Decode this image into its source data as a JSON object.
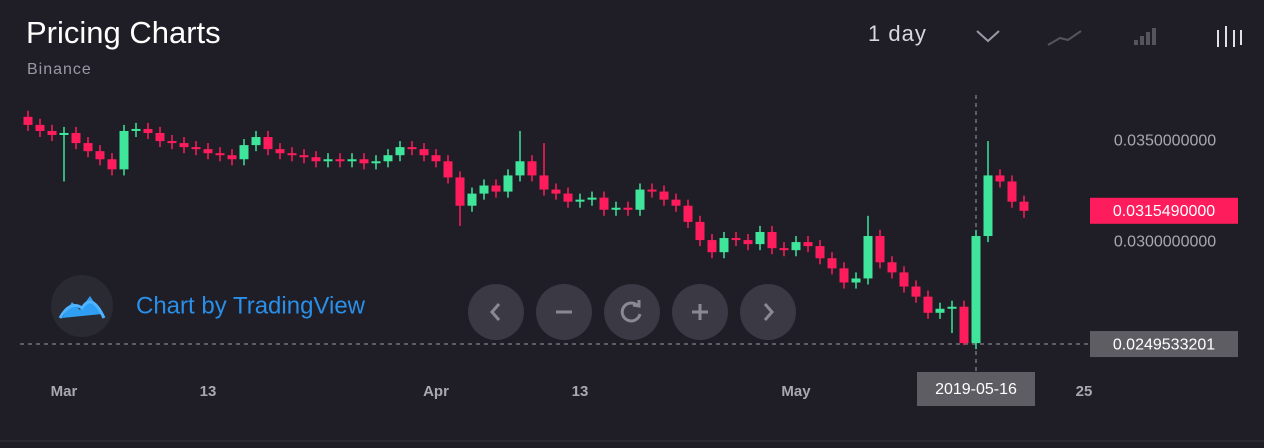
{
  "header": {
    "title": "Pricing Charts",
    "subtitle": "Binance",
    "interval": "1 day"
  },
  "watermark": "Chart by TradingView",
  "chart_data": {
    "type": "candlestick",
    "up_color": "#3ee59a",
    "down_color": "#ff1c5c",
    "x": [
      "2019-02-26",
      "2019-02-27",
      "2019-02-28",
      "2019-03-01",
      "2019-03-02",
      "2019-03-03",
      "2019-03-04",
      "2019-03-05",
      "2019-03-06",
      "2019-03-07",
      "2019-03-08",
      "2019-03-09",
      "2019-03-10",
      "2019-03-11",
      "2019-03-12",
      "2019-03-13",
      "2019-03-14",
      "2019-03-15",
      "2019-03-16",
      "2019-03-17",
      "2019-03-18",
      "2019-03-19",
      "2019-03-20",
      "2019-03-21",
      "2019-03-22",
      "2019-03-23",
      "2019-03-24",
      "2019-03-25",
      "2019-03-26",
      "2019-03-27",
      "2019-03-28",
      "2019-03-29",
      "2019-03-30",
      "2019-03-31",
      "2019-04-01",
      "2019-04-02",
      "2019-04-03",
      "2019-04-04",
      "2019-04-05",
      "2019-04-06",
      "2019-04-07",
      "2019-04-08",
      "2019-04-09",
      "2019-04-10",
      "2019-04-11",
      "2019-04-12",
      "2019-04-13",
      "2019-04-14",
      "2019-04-15",
      "2019-04-16",
      "2019-04-17",
      "2019-04-18",
      "2019-04-19",
      "2019-04-20",
      "2019-04-21",
      "2019-04-22",
      "2019-04-23",
      "2019-04-24",
      "2019-04-25",
      "2019-04-26",
      "2019-04-27",
      "2019-04-28",
      "2019-04-29",
      "2019-04-30",
      "2019-05-01",
      "2019-05-02",
      "2019-05-03",
      "2019-05-04",
      "2019-05-05",
      "2019-05-06",
      "2019-05-07",
      "2019-05-08",
      "2019-05-09",
      "2019-05-10",
      "2019-05-11",
      "2019-05-12",
      "2019-05-13",
      "2019-05-14",
      "2019-05-15",
      "2019-05-16",
      "2019-05-17",
      "2019-05-18",
      "2019-05-19",
      "2019-05-20"
    ],
    "open": [
      0.0362,
      0.0358,
      0.0355,
      0.0353,
      0.0354,
      0.0349,
      0.0345,
      0.0341,
      0.0336,
      0.0355,
      0.0356,
      0.0354,
      0.035,
      0.0349,
      0.0347,
      0.0346,
      0.0344,
      0.0343,
      0.0341,
      0.0348,
      0.0352,
      0.0346,
      0.0344,
      0.0343,
      0.0342,
      0.034,
      0.0341,
      0.034,
      0.0341,
      0.0339,
      0.034,
      0.0343,
      0.0347,
      0.0346,
      0.0343,
      0.034,
      0.0332,
      0.0318,
      0.0324,
      0.0328,
      0.0325,
      0.0333,
      0.034,
      0.0333,
      0.0326,
      0.0324,
      0.032,
      0.0321,
      0.0322,
      0.0316,
      0.0317,
      0.0316,
      0.0326,
      0.0325,
      0.0321,
      0.0318,
      0.031,
      0.0301,
      0.0295,
      0.0302,
      0.0301,
      0.0299,
      0.0305,
      0.0297,
      0.0296,
      0.03,
      0.0298,
      0.0292,
      0.0287,
      0.028,
      0.0282,
      0.0303,
      0.029,
      0.0285,
      0.0278,
      0.0273,
      0.0265,
      0.0267,
      0.0268,
      0.025,
      0.0303,
      0.0333,
      0.033,
      0.032
    ],
    "high": [
      0.0365,
      0.0361,
      0.0358,
      0.0357,
      0.0357,
      0.0352,
      0.0348,
      0.0344,
      0.0358,
      0.0359,
      0.0359,
      0.0357,
      0.0353,
      0.0352,
      0.035,
      0.0349,
      0.0347,
      0.0346,
      0.0351,
      0.0355,
      0.0355,
      0.0349,
      0.0347,
      0.0346,
      0.0345,
      0.0344,
      0.0344,
      0.0344,
      0.0344,
      0.0343,
      0.0346,
      0.035,
      0.035,
      0.0349,
      0.0346,
      0.0343,
      0.0335,
      0.0327,
      0.0331,
      0.0331,
      0.0336,
      0.0355,
      0.0343,
      0.0349,
      0.0329,
      0.0327,
      0.0324,
      0.0325,
      0.0325,
      0.032,
      0.032,
      0.0329,
      0.0329,
      0.0328,
      0.0324,
      0.0321,
      0.0313,
      0.0304,
      0.0305,
      0.0305,
      0.0304,
      0.0308,
      0.0308,
      0.03,
      0.0303,
      0.0303,
      0.0301,
      0.0295,
      0.029,
      0.0285,
      0.0313,
      0.0306,
      0.0293,
      0.0288,
      0.0281,
      0.0276,
      0.027,
      0.0271,
      0.0271,
      0.0306,
      0.035,
      0.0336,
      0.0333,
      0.0323
    ],
    "low": [
      0.0355,
      0.0352,
      0.035,
      0.033,
      0.0346,
      0.0342,
      0.0338,
      0.0333,
      0.0333,
      0.0352,
      0.0351,
      0.0347,
      0.0346,
      0.0344,
      0.0343,
      0.0341,
      0.034,
      0.0338,
      0.0338,
      0.0345,
      0.0343,
      0.0341,
      0.034,
      0.0339,
      0.0337,
      0.0337,
      0.0337,
      0.0337,
      0.0336,
      0.0336,
      0.0337,
      0.034,
      0.0343,
      0.034,
      0.0337,
      0.0329,
      0.0308,
      0.0315,
      0.0321,
      0.0322,
      0.0322,
      0.033,
      0.033,
      0.0323,
      0.0321,
      0.0317,
      0.0317,
      0.0318,
      0.0313,
      0.0313,
      0.0313,
      0.0313,
      0.0322,
      0.0318,
      0.0315,
      0.0307,
      0.0298,
      0.0292,
      0.0292,
      0.0298,
      0.0296,
      0.0296,
      0.0294,
      0.0293,
      0.0293,
      0.0295,
      0.0289,
      0.0284,
      0.0277,
      0.0277,
      0.0279,
      0.0287,
      0.0282,
      0.0275,
      0.027,
      0.0262,
      0.0262,
      0.0255,
      0.0249,
      0.0247,
      0.03,
      0.0327,
      0.0317,
      0.0312
    ],
    "close": [
      0.0358,
      0.0355,
      0.0353,
      0.0354,
      0.0349,
      0.0345,
      0.0341,
      0.0336,
      0.0355,
      0.0356,
      0.0354,
      0.035,
      0.0349,
      0.0347,
      0.0346,
      0.0344,
      0.0343,
      0.0341,
      0.0348,
      0.0352,
      0.0346,
      0.0344,
      0.0343,
      0.0342,
      0.034,
      0.0341,
      0.034,
      0.0341,
      0.0339,
      0.034,
      0.0343,
      0.0347,
      0.0346,
      0.0343,
      0.034,
      0.0332,
      0.0318,
      0.0324,
      0.0328,
      0.0325,
      0.0333,
      0.034,
      0.0333,
      0.0326,
      0.0324,
      0.032,
      0.0321,
      0.0322,
      0.0316,
      0.0317,
      0.0316,
      0.0326,
      0.0325,
      0.0321,
      0.0318,
      0.031,
      0.0301,
      0.0295,
      0.0302,
      0.0301,
      0.0299,
      0.0305,
      0.0297,
      0.0296,
      0.03,
      0.0298,
      0.0292,
      0.0287,
      0.028,
      0.0282,
      0.0303,
      0.029,
      0.0285,
      0.0278,
      0.0273,
      0.0265,
      0.0267,
      0.0268,
      0.025,
      0.0303,
      0.0333,
      0.033,
      0.032,
      0.031549
    ],
    "xlim": [
      "2019-02-24",
      "2019-05-25"
    ],
    "xticks": [
      {
        "value": "2019-03-01",
        "label": "Mar"
      },
      {
        "value": "2019-03-13",
        "label": "13"
      },
      {
        "value": "2019-04-01",
        "label": "Apr"
      },
      {
        "value": "2019-04-13",
        "label": "13"
      },
      {
        "value": "2019-05-01",
        "label": "May"
      },
      {
        "value": "2019-05-25",
        "label": "25"
      }
    ],
    "ylim": [
      0.02357,
      0.03728
    ],
    "yticks": [
      {
        "value": 0.035,
        "label": "0.0350000000"
      },
      {
        "value": 0.03,
        "label": "0.0300000000"
      }
    ],
    "last_price": {
      "value": 0.031549,
      "label": "0.0315490000"
    },
    "crosshair": {
      "x": "2019-05-16",
      "y": 0.0249533201
    }
  }
}
